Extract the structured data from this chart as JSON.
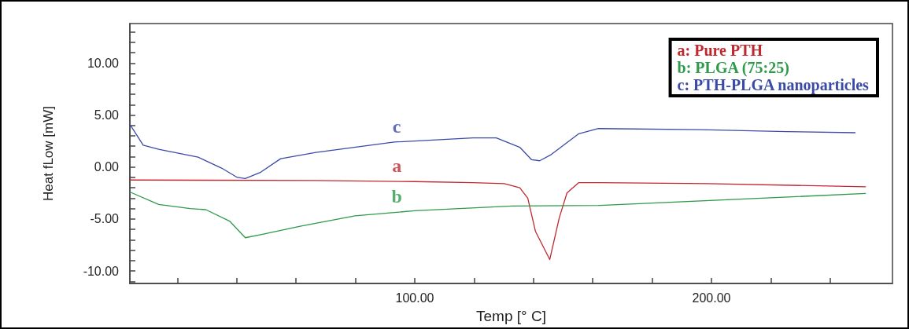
{
  "chart_data": {
    "type": "line",
    "xlabel": "Temp [° C]",
    "ylabel": "Heat fLow [mW]",
    "xlim": [
      4,
      261
    ],
    "ylim": [
      -11.2,
      13.8
    ],
    "xticks": [
      {
        "value": 20,
        "label": null
      },
      {
        "value": 40,
        "label": null
      },
      {
        "value": 60,
        "label": null
      },
      {
        "value": 80,
        "label": null
      },
      {
        "value": 100,
        "label": "100.00"
      },
      {
        "value": 120,
        "label": null
      },
      {
        "value": 140,
        "label": null
      },
      {
        "value": 160,
        "label": null
      },
      {
        "value": 180,
        "label": null
      },
      {
        "value": 200,
        "label": "200.00"
      },
      {
        "value": 220,
        "label": null
      },
      {
        "value": 240,
        "label": null
      }
    ],
    "yticks": [
      {
        "value": -11,
        "label": null
      },
      {
        "value": -10,
        "label": "-10.00"
      },
      {
        "value": -9,
        "label": null
      },
      {
        "value": -8,
        "label": null
      },
      {
        "value": -7,
        "label": null
      },
      {
        "value": -6,
        "label": null
      },
      {
        "value": -5,
        "label": "-5.00"
      },
      {
        "value": -4,
        "label": null
      },
      {
        "value": -3,
        "label": null
      },
      {
        "value": -2,
        "label": null
      },
      {
        "value": -1,
        "label": null
      },
      {
        "value": 0,
        "label": "0.00"
      },
      {
        "value": 1,
        "label": null
      },
      {
        "value": 2,
        "label": null
      },
      {
        "value": 3,
        "label": null
      },
      {
        "value": 4,
        "label": null
      },
      {
        "value": 5,
        "label": "5.00"
      },
      {
        "value": 6,
        "label": null
      },
      {
        "value": 7,
        "label": null
      },
      {
        "value": 8,
        "label": null
      },
      {
        "value": 9,
        "label": null
      },
      {
        "value": 10,
        "label": "10.00"
      },
      {
        "value": 11,
        "label": null
      },
      {
        "value": 12,
        "label": null
      },
      {
        "value": 13,
        "label": null
      }
    ],
    "grid": false,
    "legend": "top right",
    "marker": "none",
    "line_style": "solid",
    "series": [
      {
        "name": "a: Pure PTH",
        "color": "#c0282e",
        "x": [
          4,
          66.7,
          100,
          119.6,
          130.2,
          135.4,
          138.1,
          140.7,
          145.5,
          148.7,
          151.3,
          155.3,
          161.9,
          198.9,
          251.9
        ],
        "values": [
          -1.25,
          -1.3,
          -1.4,
          -1.5,
          -1.6,
          -2.0,
          -3.0,
          -6.2,
          -8.9,
          -4.9,
          -2.5,
          -1.5,
          -1.5,
          -1.6,
          -1.9
        ]
      },
      {
        "name": "b: PLGA (75:25)",
        "color": "#2e9a4a",
        "x": [
          4,
          13.7,
          24.3,
          29.6,
          37.6,
          42.9,
          48.1,
          61.4,
          79.9,
          100,
          132.8,
          161.9,
          251.9
        ],
        "values": [
          -2.4,
          -3.6,
          -4.0,
          -4.1,
          -5.2,
          -6.8,
          -6.5,
          -5.7,
          -4.7,
          -4.2,
          -3.75,
          -3.7,
          -2.55
        ]
      },
      {
        "name": "c: PTH-PLGA nanoparticles",
        "color": "#3a4aa8",
        "x": [
          4,
          8.5,
          13.7,
          27,
          34.9,
          40.2,
          42.9,
          48.1,
          54.8,
          66.7,
          93.1,
          119.6,
          127.5,
          135.4,
          139.4,
          142.1,
          146,
          155.3,
          161.9,
          196.3,
          225.4,
          248.4
        ],
        "values": [
          4.1,
          2.1,
          1.7,
          0.95,
          -0.1,
          -1.0,
          -1.1,
          -0.5,
          0.8,
          1.4,
          2.4,
          2.8,
          2.8,
          1.9,
          0.7,
          0.6,
          1.2,
          3.2,
          3.7,
          3.6,
          3.4,
          3.3
        ]
      }
    ],
    "annotations": [
      "a",
      "b",
      "c"
    ]
  }
}
